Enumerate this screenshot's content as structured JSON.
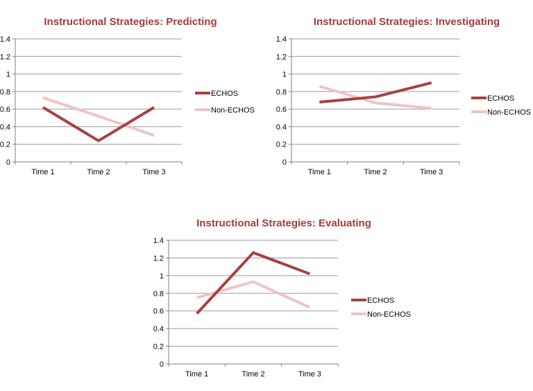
{
  "theme": {
    "title_color": "#a43a3a",
    "echos_color": "#a8413f",
    "non_echos_color": "#efc4c4",
    "grid_color": "#9a9a9a",
    "axis_color": "#7f7f7f"
  },
  "chart_data": [
    {
      "type": "line",
      "title": "Instructional Strategies: Predicting",
      "categories": [
        "Time 1",
        "Time 2",
        "Time 3"
      ],
      "y_ticks": [
        "0",
        "0.2",
        "0.4",
        "0.6",
        "0.8",
        "1",
        "1.2",
        "1.4"
      ],
      "ylim": [
        0,
        1.4
      ],
      "grid": true,
      "legend_position": "right",
      "series": [
        {
          "name": "ECHOS",
          "values": [
            0.62,
            0.24,
            0.62
          ]
        },
        {
          "name": "Non-ECHOS",
          "values": [
            0.73,
            0.52,
            0.3
          ]
        }
      ]
    },
    {
      "type": "line",
      "title": "Instructional Strategies: Investigating",
      "categories": [
        "Time 1",
        "Time 2",
        "Time 3"
      ],
      "y_ticks": [
        "0",
        "0.2",
        "0.4",
        "0.6",
        "0.8",
        "1",
        "1.2",
        "1.4"
      ],
      "ylim": [
        0,
        1.4
      ],
      "grid": true,
      "legend_position": "right",
      "series": [
        {
          "name": "ECHOS",
          "values": [
            0.68,
            0.74,
            0.9
          ]
        },
        {
          "name": "Non-ECHOS",
          "values": [
            0.86,
            0.67,
            0.61
          ]
        }
      ]
    },
    {
      "type": "line",
      "title": "Instructional Strategies: Evaluating",
      "categories": [
        "Time 1",
        "Time 2",
        "Time 3"
      ],
      "y_ticks": [
        "0",
        "0.2",
        "0.4",
        "0.6",
        "0.8",
        "1",
        "1.2",
        "1.4"
      ],
      "ylim": [
        0,
        1.4
      ],
      "grid": true,
      "legend_position": "right",
      "series": [
        {
          "name": "ECHOS",
          "values": [
            0.57,
            1.26,
            1.02
          ]
        },
        {
          "name": "Non-ECHOS",
          "values": [
            0.75,
            0.93,
            0.64
          ]
        }
      ]
    }
  ]
}
